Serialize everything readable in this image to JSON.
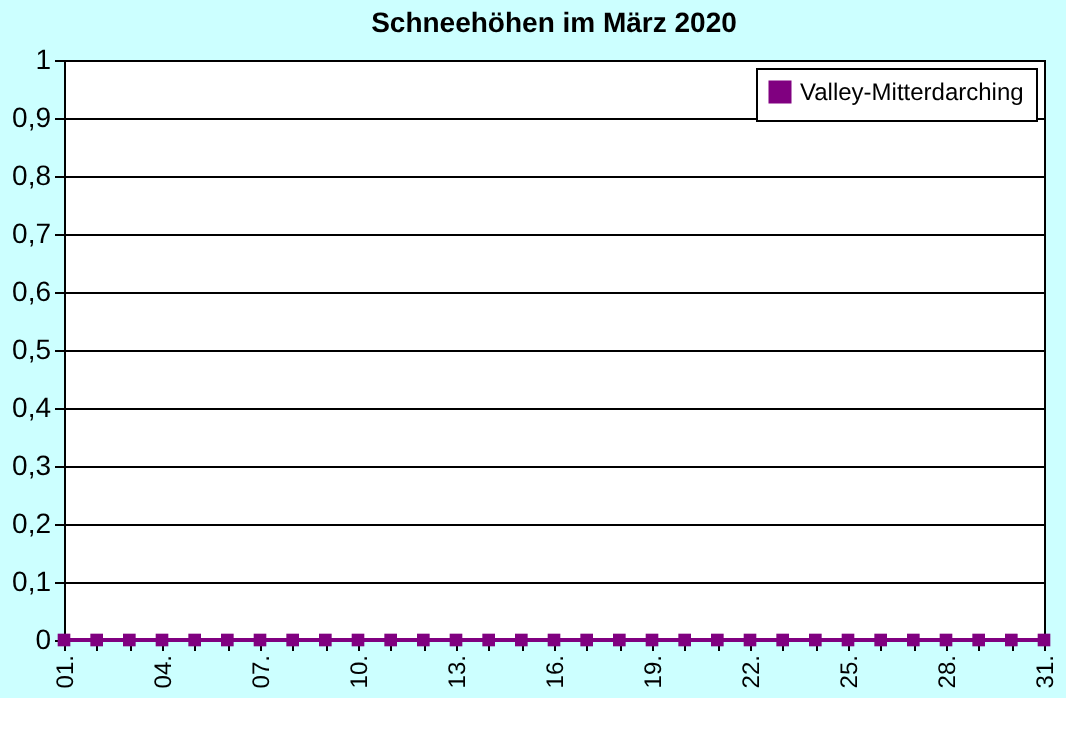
{
  "chart_data": {
    "type": "line",
    "title": "Schneehöhen  im März 2020",
    "categories": [
      "01.",
      null,
      null,
      "04.",
      null,
      null,
      "07.",
      null,
      null,
      "10.",
      null,
      null,
      "13.",
      null,
      null,
      "16.",
      null,
      null,
      "19.",
      null,
      null,
      "22.",
      null,
      null,
      "25.",
      null,
      null,
      "28.",
      null,
      null,
      "31."
    ],
    "series": [
      {
        "name": "Valley-Mitterdarching",
        "color": "#800080",
        "values": [
          0,
          0,
          0,
          0,
          0,
          0,
          0,
          0,
          0,
          0,
          0,
          0,
          0,
          0,
          0,
          0,
          0,
          0,
          0,
          0,
          0,
          0,
          0,
          0,
          0,
          0,
          0,
          0,
          0,
          0,
          0
        ]
      }
    ],
    "ylim": [
      0,
      1
    ],
    "yticks": [
      0,
      {
        "value": 0.1,
        "label": "0,1"
      },
      {
        "value": 0.2,
        "label": "0,2"
      },
      {
        "value": 0.3,
        "label": "0,3"
      },
      {
        "value": 0.4,
        "label": "0,4"
      },
      {
        "value": 0.5,
        "label": "0,5"
      },
      {
        "value": 0.6,
        "label": "0,6"
      },
      {
        "value": 0.7,
        "label": "0,7"
      },
      {
        "value": 0.8,
        "label": "0,8"
      },
      {
        "value": 0.9,
        "label": "0,9"
      },
      1
    ],
    "grid": "y",
    "legend": "top right",
    "marker": "square",
    "line_style": "solid"
  }
}
